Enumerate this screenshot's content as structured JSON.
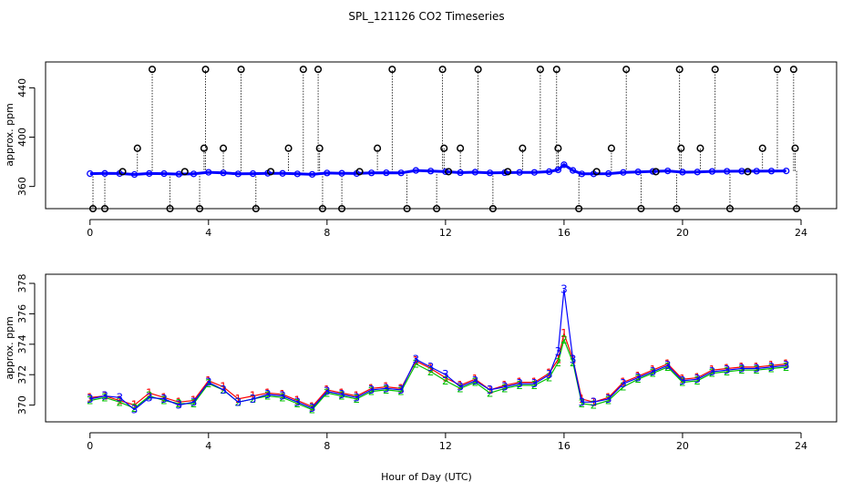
{
  "chart_data": [
    {
      "type": "scatter",
      "title": "SPL_121126  CO2 Timeseries",
      "xlabel": "",
      "ylabel": "approx. ppm",
      "xlim": [
        -1.5,
        25.2
      ],
      "ylim": [
        342,
        461
      ],
      "xticks": [
        0,
        4,
        8,
        12,
        16,
        20,
        24
      ],
      "yticks": [
        360,
        400,
        440
      ],
      "baseline_color": "#0000ff",
      "marker_color": "#000000",
      "baseline_points": [
        [
          0.0,
          370.4
        ],
        [
          0.5,
          370.6
        ],
        [
          1.0,
          370.5
        ],
        [
          1.5,
          369.7
        ],
        [
          2.0,
          370.5
        ],
        [
          2.5,
          370.4
        ],
        [
          3.0,
          370.0
        ],
        [
          3.5,
          370.2
        ],
        [
          4.0,
          371.5
        ],
        [
          4.5,
          371.0
        ],
        [
          5.0,
          370.2
        ],
        [
          5.5,
          370.4
        ],
        [
          6.0,
          370.7
        ],
        [
          6.5,
          370.6
        ],
        [
          7.0,
          370.2
        ],
        [
          7.5,
          369.8
        ],
        [
          8.0,
          370.9
        ],
        [
          8.5,
          370.7
        ],
        [
          9.0,
          370.5
        ],
        [
          9.5,
          371.0
        ],
        [
          10.0,
          371.1
        ],
        [
          10.5,
          371.0
        ],
        [
          11.0,
          373.0
        ],
        [
          11.5,
          372.5
        ],
        [
          12.0,
          372.0
        ],
        [
          12.5,
          371.2
        ],
        [
          13.0,
          371.6
        ],
        [
          13.5,
          371.0
        ],
        [
          14.0,
          371.2
        ],
        [
          14.5,
          371.4
        ],
        [
          15.0,
          371.4
        ],
        [
          15.5,
          372.0
        ],
        [
          15.8,
          373.5
        ],
        [
          16.0,
          377.6
        ],
        [
          16.3,
          373.0
        ],
        [
          16.6,
          370.2
        ],
        [
          17.0,
          370.2
        ],
        [
          17.5,
          370.4
        ],
        [
          18.0,
          371.4
        ],
        [
          18.5,
          371.8
        ],
        [
          19.0,
          372.2
        ],
        [
          19.5,
          372.6
        ],
        [
          20.0,
          371.6
        ],
        [
          20.5,
          371.7
        ],
        [
          21.0,
          372.2
        ],
        [
          21.5,
          372.3
        ],
        [
          22.0,
          372.4
        ],
        [
          22.5,
          372.4
        ],
        [
          23.0,
          372.5
        ],
        [
          23.5,
          372.6
        ]
      ],
      "spike_points": [
        [
          0.1,
          342
        ],
        [
          0.5,
          342
        ],
        [
          1.1,
          372
        ],
        [
          1.6,
          391
        ],
        [
          2.1,
          455
        ],
        [
          2.7,
          342
        ],
        [
          3.2,
          372
        ],
        [
          3.7,
          342
        ],
        [
          3.85,
          391
        ],
        [
          3.9,
          455
        ],
        [
          4.5,
          391
        ],
        [
          5.1,
          455
        ],
        [
          5.6,
          342
        ],
        [
          6.1,
          372
        ],
        [
          6.7,
          391
        ],
        [
          7.2,
          455
        ],
        [
          7.7,
          455
        ],
        [
          7.75,
          391
        ],
        [
          7.85,
          342
        ],
        [
          8.5,
          342
        ],
        [
          9.1,
          372
        ],
        [
          9.7,
          391
        ],
        [
          10.2,
          455
        ],
        [
          10.7,
          342
        ],
        [
          11.7,
          342
        ],
        [
          11.9,
          455
        ],
        [
          11.95,
          391
        ],
        [
          12.1,
          372
        ],
        [
          12.5,
          391
        ],
        [
          13.1,
          455
        ],
        [
          13.6,
          342
        ],
        [
          14.1,
          372
        ],
        [
          14.6,
          391
        ],
        [
          15.2,
          455
        ],
        [
          15.75,
          455
        ],
        [
          15.8,
          391
        ],
        [
          16.5,
          342
        ],
        [
          17.1,
          372
        ],
        [
          17.6,
          391
        ],
        [
          18.1,
          455
        ],
        [
          18.6,
          342
        ],
        [
          19.1,
          372
        ],
        [
          19.8,
          342
        ],
        [
          19.9,
          455
        ],
        [
          19.95,
          391
        ],
        [
          20.6,
          391
        ],
        [
          21.1,
          455
        ],
        [
          21.6,
          342
        ],
        [
          22.2,
          372
        ],
        [
          22.7,
          391
        ],
        [
          23.2,
          455
        ],
        [
          23.75,
          455
        ],
        [
          23.8,
          391
        ],
        [
          23.85,
          342
        ]
      ]
    },
    {
      "type": "line",
      "title": "",
      "xlabel": "Hour of Day (UTC)",
      "ylabel": "approx. ppm",
      "xlim": [
        -1.5,
        25.2
      ],
      "ylim": [
        368.9,
        378.6
      ],
      "xticks": [
        0,
        4,
        8,
        12,
        16,
        20,
        24
      ],
      "yticks": [
        370,
        372,
        374,
        376,
        378
      ],
      "series": [
        {
          "name": "1",
          "color": "#ff0000",
          "label": "1",
          "x": [
            0.0,
            0.5,
            1.0,
            1.5,
            2.0,
            2.5,
            3.0,
            3.5,
            4.0,
            4.5,
            5.0,
            5.5,
            6.0,
            6.5,
            7.0,
            7.5,
            8.0,
            8.5,
            9.0,
            9.5,
            10.0,
            10.5,
            11.0,
            11.5,
            12.0,
            12.5,
            13.0,
            13.5,
            14.0,
            14.5,
            15.0,
            15.5,
            15.8,
            16.0,
            16.3,
            16.6,
            17.0,
            17.5,
            18.0,
            18.5,
            19.0,
            19.5,
            20.0,
            20.5,
            21.0,
            21.5,
            22.0,
            22.5,
            23.0,
            23.5
          ],
          "y": [
            370.5,
            370.6,
            370.3,
            370.0,
            370.8,
            370.5,
            370.2,
            370.3,
            371.6,
            371.2,
            370.4,
            370.6,
            370.8,
            370.7,
            370.3,
            369.9,
            371.0,
            370.8,
            370.6,
            371.1,
            371.2,
            371.1,
            372.9,
            372.4,
            371.8,
            371.3,
            371.7,
            371.0,
            371.3,
            371.5,
            371.5,
            372.1,
            373.0,
            374.7,
            373.0,
            370.4,
            370.2,
            370.5,
            371.5,
            371.9,
            372.3,
            372.7,
            371.7,
            371.8,
            372.3,
            372.4,
            372.5,
            372.5,
            372.6,
            372.7
          ]
        },
        {
          "name": "2",
          "color": "#00c000",
          "label": "2",
          "x": [
            0.0,
            0.5,
            1.0,
            1.5,
            2.0,
            2.5,
            3.0,
            3.5,
            4.0,
            4.5,
            5.0,
            5.5,
            6.0,
            6.5,
            7.0,
            7.5,
            8.0,
            8.5,
            9.0,
            9.5,
            10.0,
            10.5,
            11.0,
            11.5,
            12.0,
            12.5,
            13.0,
            13.5,
            14.0,
            14.5,
            15.0,
            15.5,
            15.8,
            16.0,
            16.3,
            16.6,
            17.0,
            17.5,
            18.0,
            18.5,
            19.0,
            19.5,
            20.0,
            20.5,
            21.0,
            21.5,
            22.0,
            22.5,
            23.0,
            23.5
          ],
          "y": [
            370.3,
            370.5,
            370.2,
            369.8,
            370.6,
            370.3,
            370.1,
            370.1,
            371.4,
            371.0,
            370.2,
            370.4,
            370.6,
            370.5,
            370.1,
            369.7,
            370.8,
            370.6,
            370.4,
            370.9,
            371.0,
            370.9,
            372.7,
            372.2,
            371.6,
            371.1,
            371.5,
            370.8,
            371.1,
            371.3,
            371.3,
            371.8,
            372.8,
            374.3,
            372.8,
            370.1,
            370.0,
            370.3,
            371.2,
            371.7,
            372.1,
            372.5,
            371.5,
            371.6,
            372.1,
            372.2,
            372.3,
            372.3,
            372.4,
            372.5
          ]
        },
        {
          "name": "3",
          "color": "#0000ff",
          "label": "3",
          "x": [
            0.0,
            0.5,
            1.0,
            1.5,
            2.0,
            2.5,
            3.0,
            3.5,
            4.0,
            4.5,
            5.0,
            5.5,
            6.0,
            6.5,
            7.0,
            7.5,
            8.0,
            8.5,
            9.0,
            9.5,
            10.0,
            10.5,
            11.0,
            11.5,
            12.0,
            12.5,
            13.0,
            13.5,
            14.0,
            14.5,
            15.0,
            15.5,
            15.8,
            16.0,
            16.3,
            16.6,
            17.0,
            17.5,
            18.0,
            18.5,
            19.0,
            19.5,
            20.0,
            20.5,
            21.0,
            21.5,
            22.0,
            22.5,
            23.0,
            23.5
          ],
          "y": [
            370.4,
            370.6,
            370.5,
            369.7,
            370.5,
            370.4,
            370.0,
            370.2,
            371.5,
            371.0,
            370.2,
            370.4,
            370.7,
            370.6,
            370.2,
            369.8,
            370.9,
            370.7,
            370.5,
            371.0,
            371.1,
            371.0,
            373.0,
            372.5,
            372.0,
            371.2,
            371.6,
            371.0,
            371.2,
            371.4,
            371.4,
            372.0,
            373.5,
            377.6,
            373.0,
            370.2,
            370.2,
            370.4,
            371.4,
            371.8,
            372.2,
            372.6,
            371.6,
            371.7,
            372.2,
            372.3,
            372.4,
            372.4,
            372.5,
            372.6
          ]
        }
      ]
    }
  ]
}
